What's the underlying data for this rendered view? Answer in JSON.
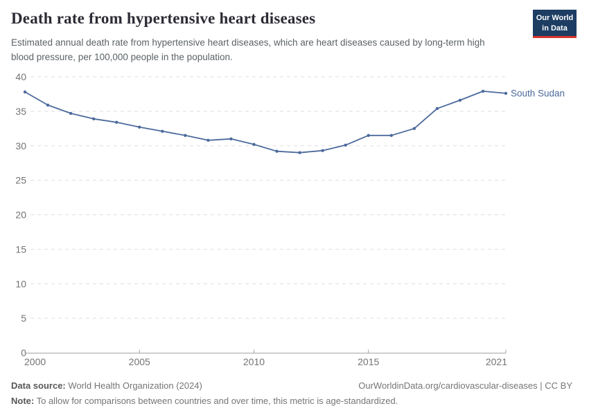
{
  "header": {
    "title": "Death rate from hypertensive heart diseases",
    "logo": {
      "line1": "Our World",
      "line2": "in Data"
    }
  },
  "subtitle": "Estimated annual death rate from hypertensive heart diseases, which are heart diseases caused by long-term high blood pressure, per 100,000 people in the population.",
  "chart_data": {
    "type": "line",
    "title": "Death rate from hypertensive heart diseases",
    "x": [
      2000,
      2001,
      2002,
      2003,
      2004,
      2005,
      2006,
      2007,
      2008,
      2009,
      2010,
      2011,
      2012,
      2013,
      2014,
      2015,
      2016,
      2017,
      2018,
      2019,
      2020,
      2021
    ],
    "series": [
      {
        "name": "South Sudan",
        "color": "#4C6A9C",
        "values": [
          37.8,
          35.9,
          34.7,
          33.9,
          33.4,
          32.7,
          32.1,
          31.5,
          30.8,
          31.0,
          30.2,
          29.2,
          29.0,
          29.3,
          30.1,
          31.5,
          31.5,
          32.5,
          35.4,
          36.6,
          37.9,
          37.6
        ]
      }
    ],
    "ylim": [
      0,
      40
    ],
    "yticks": [
      0,
      5,
      10,
      15,
      20,
      25,
      30,
      35,
      40
    ],
    "xticks": [
      2000,
      2005,
      2010,
      2015,
      2021
    ],
    "xlabel": "",
    "ylabel": "",
    "grid": "horizontal-dashed",
    "legend": "end-of-line-label"
  },
  "footer": {
    "data_source_label": "Data source:",
    "data_source": "World Health Organization (2024)",
    "attribution": "OurWorldinData.org/cardiovascular-diseases | CC BY",
    "note_label": "Note:",
    "note": "To allow for comparisons between countries and over time, this metric is age-standardized."
  },
  "colors": {
    "accent": "#4C6A9C",
    "logo_background": "#1d3d63",
    "logo_stripe": "#d8352a",
    "grid": "#dedede",
    "axis": "#a3a3a3",
    "tick_text": "#737373"
  }
}
